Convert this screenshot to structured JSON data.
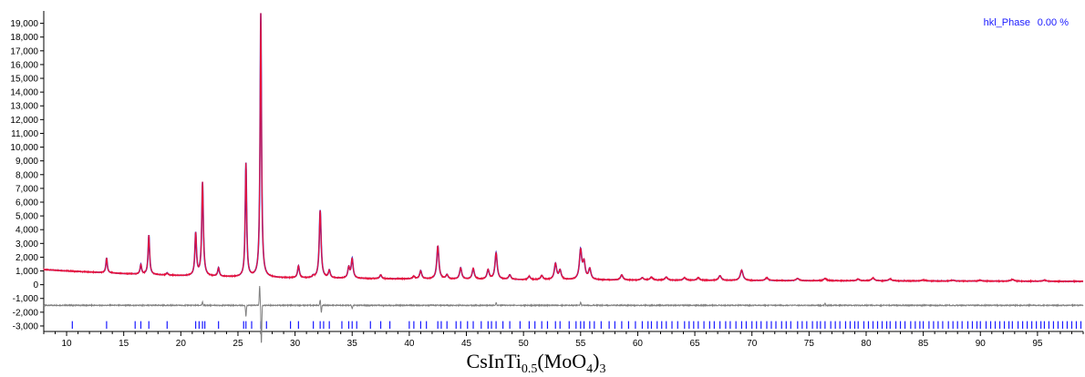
{
  "chart_data": {
    "type": "line",
    "title_parts": [
      {
        "text": "CsInTi",
        "sub": false
      },
      {
        "text": "0.5",
        "sub": true
      },
      {
        "text": "(MoO",
        "sub": false
      },
      {
        "text": "4",
        "sub": true
      },
      {
        "text": ")",
        "sub": false
      },
      {
        "text": "3",
        "sub": true
      }
    ],
    "xlabel": "",
    "ylabel": "",
    "xlim": [
      8,
      99
    ],
    "ylim": [
      -3400,
      19900
    ],
    "x_ticks": [
      10,
      15,
      20,
      25,
      30,
      35,
      40,
      45,
      50,
      55,
      60,
      65,
      70,
      75,
      80,
      85,
      90,
      95
    ],
    "x_tick_labels": [
      "10",
      "15",
      "20",
      "25",
      "30",
      "35",
      "40",
      "45",
      "50",
      "55",
      "60",
      "65",
      "70",
      "75",
      "80",
      "85",
      "90",
      "95"
    ],
    "y_ticks": [
      -3000,
      -2000,
      -1000,
      0,
      1000,
      2000,
      3000,
      4000,
      5000,
      6000,
      7000,
      8000,
      9000,
      10000,
      11000,
      12000,
      13000,
      14000,
      15000,
      16000,
      17000,
      18000,
      19000
    ],
    "y_tick_labels": [
      "-3,000",
      "-2,000",
      "-1,000",
      "0",
      "1,000",
      "2,000",
      "3,000",
      "4,000",
      "5,000",
      "6,000",
      "7,000",
      "8,000",
      "9,000",
      "10,000",
      "11,000",
      "12,000",
      "13,000",
      "14,000",
      "15,000",
      "16,000",
      "17,000",
      "18,000",
      "19,000"
    ],
    "grid": false,
    "legend": {
      "placement": "top-right",
      "entries": [
        {
          "name": "hkl_Phase",
          "value": "0.00 %"
        }
      ]
    },
    "colors": {
      "observed": "#e8123c",
      "calculated": "#2626c8",
      "difference": "#808080",
      "reflections": "#1a1aff"
    },
    "background": [
      [
        8,
        1100
      ],
      [
        10,
        1000
      ],
      [
        15,
        800
      ],
      [
        20,
        650
      ],
      [
        25,
        550
      ],
      [
        30,
        480
      ],
      [
        40,
        420
      ],
      [
        50,
        360
      ],
      [
        60,
        330
      ],
      [
        70,
        300
      ],
      [
        80,
        280
      ],
      [
        90,
        260
      ],
      [
        99,
        240
      ]
    ],
    "difference_baseline": -1500,
    "peaks": [
      {
        "x": 13.5,
        "y": 1950
      },
      {
        "x": 16.5,
        "y": 1450
      },
      {
        "x": 17.2,
        "y": 3600
      },
      {
        "x": 18.8,
        "y": 850
      },
      {
        "x": 21.3,
        "y": 3700
      },
      {
        "x": 21.9,
        "y": 7400
      },
      {
        "x": 23.3,
        "y": 1200
      },
      {
        "x": 25.7,
        "y": 8800
      },
      {
        "x": 27.0,
        "y": 19700
      },
      {
        "x": 30.3,
        "y": 1350
      },
      {
        "x": 31.6,
        "y": 600
      },
      {
        "x": 32.2,
        "y": 5400
      },
      {
        "x": 33.0,
        "y": 1000
      },
      {
        "x": 34.7,
        "y": 1200
      },
      {
        "x": 35.0,
        "y": 1850
      },
      {
        "x": 37.5,
        "y": 700
      },
      {
        "x": 40.4,
        "y": 600
      },
      {
        "x": 41.0,
        "y": 1000
      },
      {
        "x": 42.5,
        "y": 2800
      },
      {
        "x": 43.3,
        "y": 700
      },
      {
        "x": 44.5,
        "y": 1200
      },
      {
        "x": 45.6,
        "y": 1150
      },
      {
        "x": 46.9,
        "y": 1050
      },
      {
        "x": 47.6,
        "y": 2300
      },
      {
        "x": 48.8,
        "y": 700
      },
      {
        "x": 50.5,
        "y": 600
      },
      {
        "x": 51.6,
        "y": 650
      },
      {
        "x": 52.8,
        "y": 1500
      },
      {
        "x": 53.2,
        "y": 1000
      },
      {
        "x": 55.0,
        "y": 2450
      },
      {
        "x": 55.3,
        "y": 1500
      },
      {
        "x": 55.8,
        "y": 1100
      },
      {
        "x": 58.6,
        "y": 700
      },
      {
        "x": 60.4,
        "y": 500
      },
      {
        "x": 61.2,
        "y": 550
      },
      {
        "x": 62.5,
        "y": 550
      },
      {
        "x": 64.1,
        "y": 500
      },
      {
        "x": 65.3,
        "y": 500
      },
      {
        "x": 67.2,
        "y": 650
      },
      {
        "x": 69.1,
        "y": 1050
      },
      {
        "x": 71.3,
        "y": 500
      },
      {
        "x": 74.0,
        "y": 450
      },
      {
        "x": 76.4,
        "y": 450
      },
      {
        "x": 79.3,
        "y": 400
      },
      {
        "x": 80.6,
        "y": 480
      },
      {
        "x": 82.1,
        "y": 420
      },
      {
        "x": 85.0,
        "y": 350
      },
      {
        "x": 87.6,
        "y": 330
      },
      {
        "x": 90.0,
        "y": 320
      },
      {
        "x": 92.8,
        "y": 380
      },
      {
        "x": 95.6,
        "y": 330
      }
    ],
    "difference_spikes": [
      {
        "x": 21.9,
        "y": 250
      },
      {
        "x": 25.7,
        "y": -800
      },
      {
        "x": 26.9,
        "y": 1400
      },
      {
        "x": 27.05,
        "y": -2800
      },
      {
        "x": 32.2,
        "y": 400
      },
      {
        "x": 32.3,
        "y": -500
      },
      {
        "x": 35.0,
        "y": -250
      },
      {
        "x": 47.6,
        "y": 200
      },
      {
        "x": 55.0,
        "y": 250
      },
      {
        "x": 76.4,
        "y": 150
      }
    ],
    "reflections": [
      10.5,
      13.5,
      16.0,
      16.5,
      17.2,
      18.8,
      21.3,
      21.6,
      21.9,
      22.1,
      23.3,
      25.5,
      25.7,
      26.2,
      27.0,
      27.5,
      29.6,
      30.3,
      31.6,
      32.2,
      32.5,
      33.0,
      34.1,
      34.7,
      35.0,
      35.4,
      36.6,
      37.5,
      38.3,
      40.0,
      40.4,
      41.0,
      41.5,
      42.5,
      42.8,
      43.3,
      44.1,
      44.5,
      45.1,
      45.6,
      46.3,
      46.9,
      47.2,
      47.6,
      48.2,
      48.8,
      49.7,
      50.5,
      51.0,
      51.6,
      52.1,
      52.8,
      53.2,
      54.0,
      54.6,
      55.0,
      55.3,
      55.8,
      56.2,
      56.8,
      57.5,
      58.0,
      58.6,
      59.2,
      59.8,
      60.4,
      60.9,
      61.2,
      61.7,
      62.1,
      62.5,
      63.0,
      63.5,
      64.1,
      64.5,
      64.9,
      65.3,
      65.8,
      66.3,
      66.7,
      67.2,
      67.7,
      68.1,
      68.6,
      69.1,
      69.5,
      70.0,
      70.4,
      70.8,
      71.3,
      71.7,
      72.1,
      72.6,
      73.0,
      73.4,
      74.0,
      74.4,
      74.8,
      75.3,
      75.7,
      76.0,
      76.4,
      76.9,
      77.3,
      77.7,
      78.2,
      78.6,
      79.0,
      79.3,
      79.8,
      80.2,
      80.6,
      81.0,
      81.4,
      81.8,
      82.1,
      82.6,
      83.0,
      83.4,
      83.9,
      84.3,
      84.7,
      85.0,
      85.5,
      85.9,
      86.3,
      86.7,
      87.2,
      87.6,
      88.0,
      88.4,
      88.9,
      89.3,
      89.7,
      90.0,
      90.5,
      90.9,
      91.3,
      91.7,
      92.1,
      92.5,
      92.8,
      93.3,
      93.7,
      94.1,
      94.5,
      94.9,
      95.3,
      95.6,
      96.0,
      96.4,
      96.8,
      97.2,
      97.6,
      98.0,
      98.4,
      98.8
    ]
  }
}
